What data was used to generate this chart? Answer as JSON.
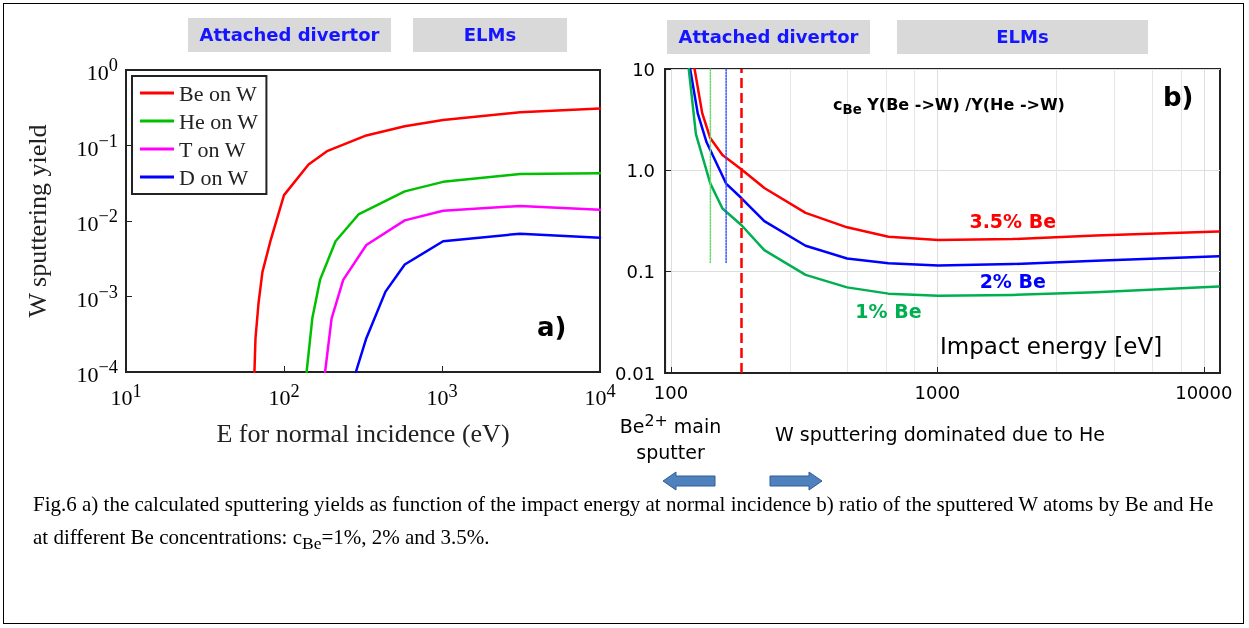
{
  "chart_data": [
    {
      "type": "line",
      "xlabel": "E for normal incidence (eV)",
      "ylabel": "W sputtering yield",
      "log": "xy",
      "xlim": [
        10,
        10000
      ],
      "ylim": [
        0.0001,
        1
      ],
      "xticks": [
        {
          "value": 10,
          "label": "10$^{1}$"
        },
        {
          "value": 100,
          "label": "10$^{2}$"
        },
        {
          "value": 1000,
          "label": "10$^{3}$"
        },
        {
          "value": 10000,
          "label": "10$^{4}$"
        }
      ],
      "yticks": [
        {
          "value": 0.0001,
          "label": "10$^{−4}$"
        },
        {
          "value": 0.001,
          "label": "10$^{−3}$"
        },
        {
          "value": 0.01,
          "label": "10$^{−2}$"
        },
        {
          "value": 0.1,
          "label": "10$^{−1}$"
        },
        {
          "value": 1,
          "label": "10$^{0}$"
        }
      ],
      "grid": false,
      "legend": "top left",
      "marker": "none",
      "line_style": "solid",
      "series": [
        {
          "name": "Be on W",
          "color": "#ff0000",
          "x": [
            65,
            66,
            69,
            73,
            82,
            100,
            143,
            189,
            332,
            581,
            1016,
            3119,
            10000
          ],
          "values": [
            0.0001,
            0.00028,
            0.00082,
            0.0021,
            0.0054,
            0.022,
            0.056,
            0.085,
            0.136,
            0.18,
            0.217,
            0.275,
            0.31
          ]
        },
        {
          "name": "He on W",
          "color": "#00c000",
          "x": [
            139,
            151,
            169,
            212,
            296,
            581,
            1016,
            3119,
            10000
          ],
          "values": [
            0.0001,
            0.00051,
            0.00166,
            0.0054,
            0.0122,
            0.0247,
            0.033,
            0.042,
            0.043
          ]
        },
        {
          "name": "T on W",
          "color": "#ff00ff",
          "x": [
            182,
            200,
            237,
            332,
            581,
            1016,
            3119,
            10000
          ],
          "values": [
            0.0001,
            0.00051,
            0.00166,
            0.0048,
            0.0102,
            0.0137,
            0.0158,
            0.0141
          ]
        },
        {
          "name": "D on W",
          "color": "#0000ff",
          "x": [
            285,
            332,
            439,
            581,
            1016,
            3119,
            10000
          ],
          "values": [
            0.0001,
            0.00028,
            0.00116,
            0.00265,
            0.0054,
            0.0068,
            0.006
          ]
        }
      ],
      "annotations": [
        "Attached divertor",
        "ELMs",
        "a)",
        "Fig.6 a) the calculated sputtering yields as function of the impact energy at normal incidence b) ratio of the sputtered W atoms by Be and He at different Be concentrations: c$_{Be}$=1%, 2% and 3.5%."
      ]
    },
    {
      "type": "line",
      "xlabel": "Impact energy [eV]",
      "log": "xy",
      "xlim": [
        95,
        11500
      ],
      "ylim": [
        0.01,
        10
      ],
      "xticks": [
        100,
        1000,
        10000
      ],
      "yticks": [
        0.01,
        0.1,
        {
          "value": 1,
          "label": "1.0"
        },
        10
      ],
      "grid": true,
      "marker": "none",
      "line_style": "solid",
      "series": [
        {
          "name": "3.5% Be",
          "color": "#ff0000",
          "x": [
            122.6,
            131,
            140.5,
            156,
            184,
            224,
            320,
            458,
            655,
            1007,
            1918,
            3930,
            11370
          ],
          "values": [
            10,
            3.65,
            2.07,
            1.42,
            1.02,
            0.67,
            0.38,
            0.274,
            0.221,
            0.205,
            0.21,
            0.227,
            0.249
          ]
        },
        {
          "name": "2% Be",
          "color": "#0000ff",
          "x": [
            118,
            126,
            136,
            161,
            184,
            224,
            320,
            458,
            655,
            1007,
            1918,
            3930,
            11370
          ],
          "values": [
            10,
            3.65,
            1.89,
            0.74,
            0.53,
            0.315,
            0.18,
            0.135,
            0.121,
            0.115,
            0.119,
            0.128,
            0.142
          ]
        },
        {
          "name": "1% Be",
          "color": "#00b050",
          "x": [
            116.6,
            124,
            140.5,
            156,
            184,
            224,
            320,
            458,
            655,
            1007,
            1918,
            3930,
            11370
          ],
          "values": [
            10,
            2.28,
            0.74,
            0.42,
            0.287,
            0.163,
            0.093,
            0.07,
            0.0607,
            0.058,
            0.059,
            0.0625,
            0.0713
          ]
        },
        {
          "color": "#66dd66",
          "line_style": "dotted",
          "x": [
            140.5,
            140.5
          ],
          "values": [
            10,
            0.12
          ]
        },
        {
          "color": "#3355ff",
          "line_style": "dotted",
          "x": [
            161,
            161
          ],
          "values": [
            10,
            0.12
          ]
        }
      ],
      "ref_lines": [
        {
          "axis": "x",
          "value": 184,
          "color": "#ff0000",
          "line_style": "dashed"
        }
      ],
      "annotations": [
        "Attached divertor",
        "ELMs",
        "b)",
        "c$_{Be}$ Y(Be ->W) /Y(He ->W)",
        "Be$^{2+}$ main sputter",
        "W sputtering dominated due to He"
      ]
    }
  ]
}
